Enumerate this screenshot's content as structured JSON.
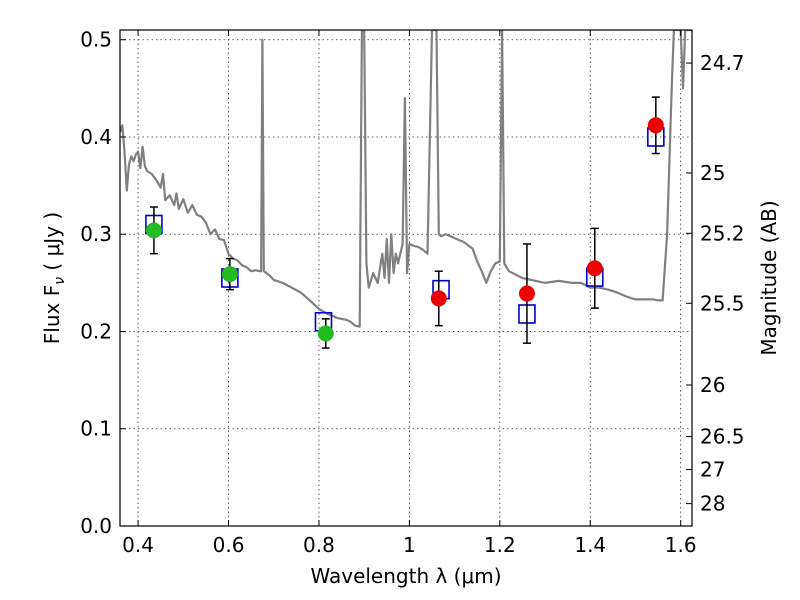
{
  "chart_data": {
    "type": "scatter",
    "xlabel": "Wavelength  λ (μm)",
    "ylabel": "Flux  F",
    "ylabel_sub": "ν",
    "ylabel_unit": "  ( μJy )",
    "ylabel_right": "Magnitude (AB)",
    "xlim": [
      0.36,
      1.625
    ],
    "ylim": [
      0.0,
      0.51
    ],
    "grid": true,
    "x_ticks": [
      {
        "value": 0.4,
        "label": "0.4"
      },
      {
        "value": 0.6,
        "label": "0.6"
      },
      {
        "value": 0.8,
        "label": "0.8"
      },
      {
        "value": 1.0,
        "label": "1"
      },
      {
        "value": 1.2,
        "label": "1.2"
      },
      {
        "value": 1.4,
        "label": "1.4"
      },
      {
        "value": 1.6,
        "label": "1.6"
      }
    ],
    "y_ticks": [
      {
        "value": 0.0,
        "label": "0.0"
      },
      {
        "value": 0.1,
        "label": "0.1"
      },
      {
        "value": 0.2,
        "label": "0.2"
      },
      {
        "value": 0.3,
        "label": "0.3"
      },
      {
        "value": 0.4,
        "label": "0.4"
      },
      {
        "value": 0.5,
        "label": "0.5"
      }
    ],
    "right_ticks": [
      {
        "flux": 0.476,
        "label": "24.7"
      },
      {
        "flux": 0.363,
        "label": "25"
      },
      {
        "flux": 0.301,
        "label": "25.2"
      },
      {
        "flux": 0.229,
        "label": "25.5"
      },
      {
        "flux": 0.145,
        "label": "26"
      },
      {
        "flux": 0.092,
        "label": "26.5"
      },
      {
        "flux": 0.058,
        "label": "27"
      },
      {
        "flux": 0.023,
        "label": "28"
      }
    ],
    "spectrum": {
      "color": "#808080",
      "points": [
        [
          0.36,
          0.405
        ],
        [
          0.365,
          0.412
        ],
        [
          0.37,
          0.385
        ],
        [
          0.375,
          0.345
        ],
        [
          0.38,
          0.372
        ],
        [
          0.385,
          0.38
        ],
        [
          0.39,
          0.375
        ],
        [
          0.395,
          0.382
        ],
        [
          0.4,
          0.385
        ],
        [
          0.405,
          0.368
        ],
        [
          0.41,
          0.39
        ],
        [
          0.415,
          0.37
        ],
        [
          0.42,
          0.365
        ],
        [
          0.43,
          0.362
        ],
        [
          0.44,
          0.356
        ],
        [
          0.45,
          0.348
        ],
        [
          0.455,
          0.362
        ],
        [
          0.46,
          0.335
        ],
        [
          0.47,
          0.34
        ],
        [
          0.48,
          0.33
        ],
        [
          0.485,
          0.342
        ],
        [
          0.49,
          0.326
        ],
        [
          0.5,
          0.336
        ],
        [
          0.51,
          0.322
        ],
        [
          0.52,
          0.33
        ],
        [
          0.53,
          0.32
        ],
        [
          0.54,
          0.318
        ],
        [
          0.55,
          0.312
        ],
        [
          0.56,
          0.3
        ],
        [
          0.57,
          0.305
        ],
        [
          0.58,
          0.295
        ],
        [
          0.59,
          0.294
        ],
        [
          0.6,
          0.28
        ],
        [
          0.61,
          0.275
        ],
        [
          0.62,
          0.273
        ],
        [
          0.63,
          0.268
        ],
        [
          0.64,
          0.266
        ],
        [
          0.65,
          0.262
        ],
        [
          0.66,
          0.263
        ],
        [
          0.668,
          0.262
        ],
        [
          0.672,
          0.262
        ],
        [
          0.675,
          0.5
        ],
        [
          0.678,
          0.262
        ],
        [
          0.69,
          0.258
        ],
        [
          0.7,
          0.253
        ],
        [
          0.72,
          0.25
        ],
        [
          0.74,
          0.245
        ],
        [
          0.76,
          0.24
        ],
        [
          0.78,
          0.232
        ],
        [
          0.8,
          0.223
        ],
        [
          0.82,
          0.218
        ],
        [
          0.84,
          0.214
        ],
        [
          0.86,
          0.212
        ],
        [
          0.87,
          0.21
        ],
        [
          0.88,
          0.206
        ],
        [
          0.89,
          0.205
        ],
        [
          0.895,
          0.51
        ],
        [
          0.9,
          0.51
        ],
        [
          0.905,
          0.27
        ],
        [
          0.91,
          0.245
        ],
        [
          0.92,
          0.26
        ],
        [
          0.93,
          0.25
        ],
        [
          0.94,
          0.28
        ],
        [
          0.945,
          0.255
        ],
        [
          0.95,
          0.295
        ],
        [
          0.955,
          0.25
        ],
        [
          0.96,
          0.3
        ],
        [
          0.965,
          0.26
        ],
        [
          0.97,
          0.28
        ],
        [
          0.975,
          0.27
        ],
        [
          0.98,
          0.28
        ],
        [
          0.985,
          0.29
        ],
        [
          0.99,
          0.44
        ],
        [
          0.995,
          0.26
        ],
        [
          1.0,
          0.29
        ],
        [
          1.01,
          0.288
        ],
        [
          1.02,
          0.287
        ],
        [
          1.03,
          0.284
        ],
        [
          1.04,
          0.28
        ],
        [
          1.05,
          0.51
        ],
        [
          1.06,
          0.51
        ],
        [
          1.065,
          0.3
        ],
        [
          1.07,
          0.298
        ],
        [
          1.08,
          0.3
        ],
        [
          1.1,
          0.296
        ],
        [
          1.12,
          0.292
        ],
        [
          1.14,
          0.285
        ],
        [
          1.15,
          0.272
        ],
        [
          1.16,
          0.262
        ],
        [
          1.17,
          0.25
        ],
        [
          1.18,
          0.262
        ],
        [
          1.19,
          0.27
        ],
        [
          1.2,
          0.272
        ],
        [
          1.205,
          0.51
        ],
        [
          1.21,
          0.27
        ],
        [
          1.22,
          0.262
        ],
        [
          1.25,
          0.255
        ],
        [
          1.28,
          0.252
        ],
        [
          1.3,
          0.25
        ],
        [
          1.33,
          0.252
        ],
        [
          1.36,
          0.25
        ],
        [
          1.38,
          0.25
        ],
        [
          1.4,
          0.245
        ],
        [
          1.42,
          0.245
        ],
        [
          1.44,
          0.243
        ],
        [
          1.46,
          0.24
        ],
        [
          1.48,
          0.236
        ],
        [
          1.5,
          0.233
        ],
        [
          1.52,
          0.233
        ],
        [
          1.53,
          0.233
        ],
        [
          1.54,
          0.233
        ],
        [
          1.55,
          0.232
        ],
        [
          1.56,
          0.232
        ],
        [
          1.57,
          0.3
        ],
        [
          1.58,
          0.45
        ],
        [
          1.585,
          0.51
        ],
        [
          1.59,
          0.51
        ],
        [
          1.6,
          0.51
        ],
        [
          1.605,
          0.45
        ],
        [
          1.61,
          0.51
        ],
        [
          1.625,
          0.51
        ]
      ]
    },
    "model_points": {
      "color": "#0000cc",
      "points": [
        [
          0.435,
          0.31
        ],
        [
          0.603,
          0.255
        ],
        [
          0.81,
          0.21
        ],
        [
          1.07,
          0.243
        ],
        [
          1.26,
          0.218
        ],
        [
          1.41,
          0.256
        ],
        [
          1.545,
          0.4
        ]
      ]
    },
    "series": [
      {
        "color": "#22bb22",
        "points": [
          {
            "x": 0.435,
            "y": 0.304,
            "err": 0.024
          },
          {
            "x": 0.603,
            "y": 0.259,
            "err": 0.016
          },
          {
            "x": 0.815,
            "y": 0.198,
            "err": 0.015
          }
        ]
      },
      {
        "color": "#ee0000",
        "points": [
          {
            "x": 1.065,
            "y": 0.234,
            "err": 0.028
          },
          {
            "x": 1.26,
            "y": 0.239,
            "err": 0.051
          },
          {
            "x": 1.41,
            "y": 0.265,
            "err": 0.041
          },
          {
            "x": 1.545,
            "y": 0.412,
            "err": 0.029
          }
        ]
      }
    ]
  }
}
